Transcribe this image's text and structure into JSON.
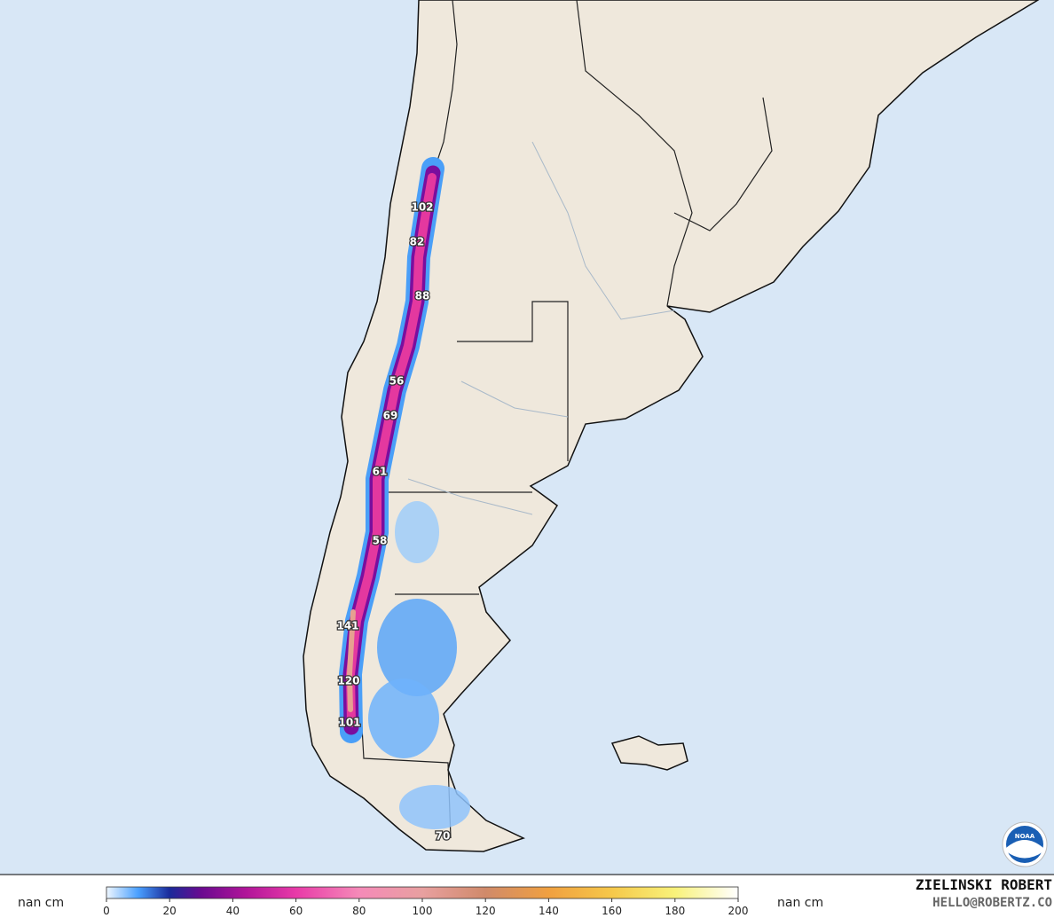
{
  "map": {
    "snow_labels": [
      102,
      82,
      88,
      56,
      69,
      61,
      58,
      141,
      120,
      101,
      70
    ],
    "logo": "NOAA"
  },
  "colorbar": {
    "unit_left": "nan cm",
    "unit_right": "nan cm",
    "ticks": [
      0,
      20,
      40,
      60,
      80,
      100,
      120,
      140,
      160,
      180,
      200
    ]
  },
  "credit": {
    "name": "ZIELINSKI ROBERT",
    "email": "HELLO@ROBERTZ.CO"
  }
}
